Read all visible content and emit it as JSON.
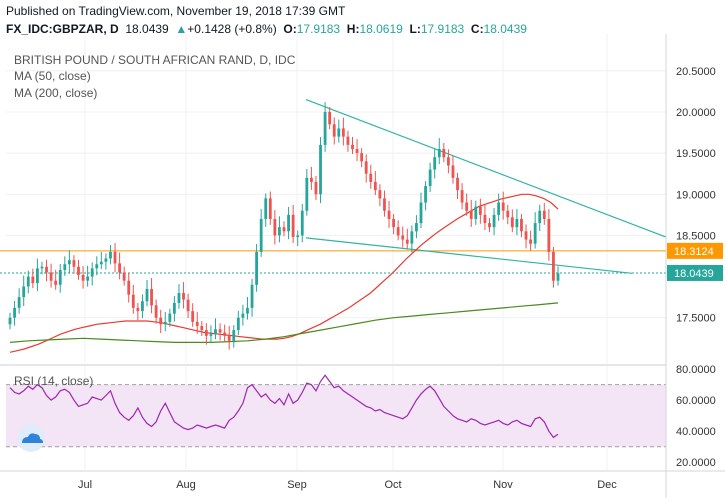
{
  "header": {
    "published": "Published on TradingView.com, November 19, 2018 17:39 GMT",
    "symbol": "FX_IDC:GBPZAR, D",
    "last": "18.0439",
    "change": "+0.1428 (+0.8%)",
    "arrow": "▲",
    "open_label": "O:",
    "open": "17.9183",
    "high_label": "H:",
    "high": "18.0619",
    "low_label": "L:",
    "low": "17.9183",
    "close_label": "C:",
    "close": "18.0439"
  },
  "legend": {
    "title": "BRITISH POUND / SOUTH AFRICAN RAND, D, IDC",
    "ma50": "MA (50, close)",
    "ma200": "MA (200, close)",
    "rsi": "RSI (14, close)"
  },
  "colors": {
    "up": "#26a69a",
    "down": "#ef5350",
    "ma50": "#e83a30",
    "ma200": "#4a8a1f",
    "trend": "#2fb5a0",
    "rsi": "#9c27b0",
    "rsi_band": "#f3e5f5",
    "orange": "#ff9800"
  },
  "chart_data": [
    {
      "type": "candlestick",
      "title": "BRITISH POUND / SOUTH AFRICAN RAND, D, IDC",
      "y_ticks": [
        "20.5000",
        "20.0000",
        "19.5000",
        "19.0000",
        "18.5000",
        "17.5000"
      ],
      "y_tick_values": [
        20.5,
        20.0,
        19.5,
        19.0,
        18.5,
        17.5
      ],
      "x_ticks": [
        "Jul",
        "Aug",
        "Sep",
        "Oct",
        "Nov",
        "Dec"
      ],
      "ylim": [
        16.95,
        20.85
      ],
      "price_labels": [
        {
          "value": 18.3124,
          "label": "18.3124",
          "color": "#ff9800"
        },
        {
          "value": 18.0439,
          "label": "18.0439",
          "color": "#26a69a"
        }
      ],
      "closes": [
        17.5,
        17.62,
        17.75,
        17.88,
        18.0,
        17.92,
        18.1,
        18.12,
        18.05,
        17.95,
        17.9,
        18.08,
        18.15,
        18.2,
        18.12,
        18.02,
        17.95,
        18.0,
        18.1,
        18.15,
        18.18,
        18.22,
        18.3,
        18.16,
        18.05,
        17.95,
        17.78,
        17.62,
        17.58,
        17.7,
        17.85,
        17.65,
        17.5,
        17.42,
        17.45,
        17.55,
        17.68,
        17.8,
        17.72,
        17.58,
        17.45,
        17.4,
        17.35,
        17.28,
        17.3,
        17.36,
        17.32,
        17.28,
        17.22,
        17.35,
        17.5,
        17.55,
        17.62,
        17.9,
        18.3,
        18.7,
        18.95,
        18.7,
        18.5,
        18.6,
        18.55,
        18.75,
        18.48,
        18.5,
        18.8,
        19.2,
        19.15,
        19.0,
        19.6,
        20.0,
        19.85,
        19.7,
        19.8,
        19.7,
        19.6,
        19.55,
        19.5,
        19.4,
        19.25,
        19.15,
        19.05,
        18.95,
        18.8,
        18.7,
        18.6,
        18.5,
        18.45,
        18.4,
        18.55,
        18.65,
        18.9,
        19.1,
        19.3,
        19.45,
        19.55,
        19.45,
        19.35,
        19.2,
        19.05,
        18.9,
        18.8,
        18.7,
        18.85,
        18.75,
        18.65,
        18.6,
        18.75,
        18.9,
        18.8,
        18.72,
        18.6,
        18.7,
        18.55,
        18.45,
        18.4,
        18.65,
        18.8,
        18.7,
        18.3,
        17.95,
        18.04
      ],
      "ma50": [
        17.08,
        17.1,
        17.12,
        17.15,
        17.18,
        17.22,
        17.26,
        17.3,
        17.33,
        17.36,
        17.38,
        17.4,
        17.42,
        17.43,
        17.44,
        17.45,
        17.46,
        17.46,
        17.46,
        17.46,
        17.45,
        17.44,
        17.42,
        17.4,
        17.38,
        17.36,
        17.34,
        17.32,
        17.31,
        17.3,
        17.29,
        17.28,
        17.27,
        17.26,
        17.25,
        17.24,
        17.24,
        17.24,
        17.25,
        17.27,
        17.3,
        17.34,
        17.38,
        17.42,
        17.47,
        17.52,
        17.57,
        17.62,
        17.68,
        17.74,
        17.8,
        17.88,
        17.96,
        18.04,
        18.13,
        18.22,
        18.3,
        18.38,
        18.45,
        18.52,
        18.58,
        18.64,
        18.7,
        18.75,
        18.8,
        18.85,
        18.88,
        18.91,
        18.94,
        18.96,
        18.98,
        19.0,
        19.0,
        18.98,
        18.95,
        18.9,
        18.82
      ],
      "ma50_start": 0,
      "ma200": [
        17.2,
        17.22,
        17.23,
        17.24,
        17.25,
        17.24,
        17.23,
        17.22,
        17.21,
        17.2,
        17.2,
        17.2,
        17.21,
        17.22,
        17.24,
        17.27,
        17.31,
        17.35,
        17.39,
        17.43,
        17.47,
        17.5,
        17.52,
        17.54,
        17.56,
        17.58,
        17.6,
        17.62,
        17.64,
        17.66,
        17.68
      ],
      "rsi_ylim": [
        15,
        82
      ],
      "rsi_ticks": [
        "80.0000",
        "60.0000",
        "40.0000",
        "20.0000"
      ],
      "rsi_tick_values": [
        80,
        60,
        40,
        20
      ],
      "rsi_band": [
        30,
        70
      ],
      "rsi": [
        68,
        65,
        64,
        66,
        69,
        67,
        70,
        68,
        63,
        60,
        62,
        66,
        67,
        65,
        60,
        56,
        57,
        58,
        62,
        61,
        60,
        63,
        66,
        58,
        52,
        49,
        47,
        50,
        55,
        49,
        45,
        43,
        46,
        53,
        58,
        52,
        46,
        44,
        42,
        41,
        42,
        44,
        43,
        42,
        43,
        44,
        43,
        42,
        47,
        49,
        53,
        58,
        68,
        70,
        66,
        62,
        64,
        60,
        58,
        61,
        57,
        64,
        58,
        60,
        65,
        71,
        70,
        66,
        72,
        76,
        72,
        68,
        69,
        66,
        64,
        62,
        60,
        58,
        56,
        55,
        53,
        54,
        52,
        51,
        50,
        49,
        48,
        50,
        55,
        60,
        64,
        67,
        69,
        66,
        61,
        56,
        53,
        50,
        48,
        47,
        46,
        48,
        47,
        45,
        44,
        45,
        46,
        47,
        45,
        44,
        46,
        47,
        45,
        44,
        43,
        48,
        49,
        46,
        40,
        36,
        38
      ]
    }
  ]
}
